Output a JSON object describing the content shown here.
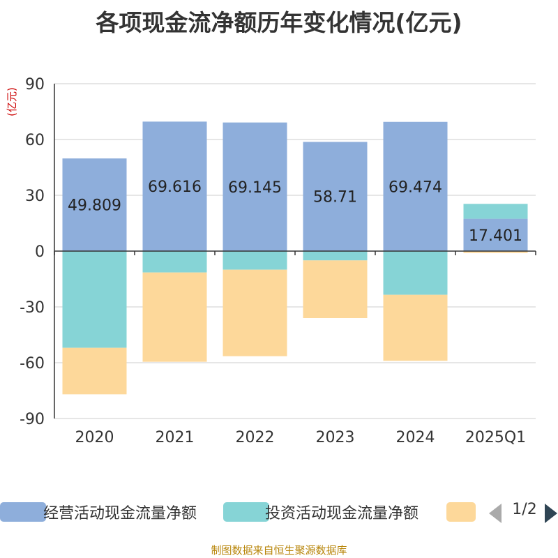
{
  "title": "各项现金流净额历年变化情况(亿元)",
  "source": "制图数据来自恒生聚源数据库",
  "legend": {
    "items": [
      {
        "label": "经营活动现金流量净额",
        "color": "#8eaedb"
      },
      {
        "label": "投资活动现金流量净额",
        "color": "#86d4d6"
      },
      {
        "label": "",
        "color": "#fdd89a"
      }
    ],
    "pager": "1/2"
  },
  "chart_data": {
    "type": "bar",
    "stacked": true,
    "categories": [
      "2020",
      "2021",
      "2022",
      "2023",
      "2024",
      "2025Q1"
    ],
    "ylabel": "(亿元)",
    "ylim": [
      -90,
      90
    ],
    "yticks": [
      90,
      60,
      30,
      0,
      -30,
      -60,
      -90
    ],
    "grid": true,
    "legend_position": "bottom",
    "series": [
      {
        "name": "经营活动现金流量净额",
        "color": "#8eaedb",
        "values": [
          49.809,
          69.616,
          69.145,
          58.71,
          69.474,
          17.401
        ],
        "labels": [
          "49.809",
          "69.616",
          "69.145",
          "58.71",
          "69.474",
          "17.401"
        ]
      },
      {
        "name": "投资活动现金流量净额",
        "color": "#86d4d6",
        "values": [
          -52.0,
          -11.5,
          -10.0,
          -5.0,
          -23.5,
          8.0
        ]
      },
      {
        "color": "#fdd89a",
        "values": [
          -25.0,
          -48.0,
          -46.5,
          -31.0,
          -35.5,
          -1.0
        ]
      }
    ]
  }
}
